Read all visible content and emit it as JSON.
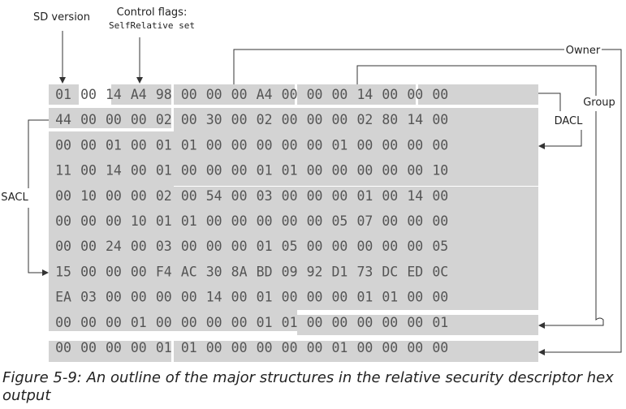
{
  "labels": {
    "sd_version": "SD version",
    "control_flags_line1": "Control flags:",
    "control_flags_line2": "SelfRelative set",
    "owner": "Owner",
    "group": "Group",
    "dacl": "DACL",
    "sacl": "SACL"
  },
  "hex_rows": [
    [
      "01",
      "00",
      "14",
      "A4",
      "98",
      "00",
      "00",
      "00",
      "A4",
      "00",
      "00",
      "00",
      "14",
      "00",
      "00",
      "00"
    ],
    [
      "44",
      "00",
      "00",
      "00",
      "02",
      "00",
      "30",
      "00",
      "02",
      "00",
      "00",
      "00",
      "02",
      "80",
      "14",
      "00"
    ],
    [
      "00",
      "00",
      "01",
      "00",
      "01",
      "01",
      "00",
      "00",
      "00",
      "00",
      "00",
      "01",
      "00",
      "00",
      "00",
      "00"
    ],
    [
      "11",
      "00",
      "14",
      "00",
      "01",
      "00",
      "00",
      "00",
      "01",
      "01",
      "00",
      "00",
      "00",
      "00",
      "00",
      "10"
    ],
    [
      "00",
      "10",
      "00",
      "00",
      "02",
      "00",
      "54",
      "00",
      "03",
      "00",
      "00",
      "00",
      "01",
      "00",
      "14",
      "00"
    ],
    [
      "00",
      "00",
      "00",
      "10",
      "01",
      "01",
      "00",
      "00",
      "00",
      "00",
      "00",
      "05",
      "07",
      "00",
      "00",
      "00"
    ],
    [
      "00",
      "00",
      "24",
      "00",
      "03",
      "00",
      "00",
      "00",
      "01",
      "05",
      "00",
      "00",
      "00",
      "00",
      "00",
      "05"
    ],
    [
      "15",
      "00",
      "00",
      "00",
      "F4",
      "AC",
      "30",
      "8A",
      "BD",
      "09",
      "92",
      "D1",
      "73",
      "DC",
      "ED",
      "0C"
    ],
    [
      "EA",
      "03",
      "00",
      "00",
      "00",
      "00",
      "14",
      "00",
      "01",
      "00",
      "00",
      "00",
      "01",
      "01",
      "00",
      "00"
    ],
    [
      "00",
      "00",
      "00",
      "01",
      "00",
      "00",
      "00",
      "00",
      "01",
      "01",
      "00",
      "00",
      "00",
      "00",
      "00",
      "01"
    ],
    [
      "00",
      "00",
      "00",
      "00",
      "01",
      "01",
      "00",
      "00",
      "00",
      "00",
      "00",
      "01",
      "00",
      "00",
      "00",
      "00"
    ]
  ],
  "caption": "Figure 5-9: An outline of the major structures in the relative security descriptor hex output"
}
